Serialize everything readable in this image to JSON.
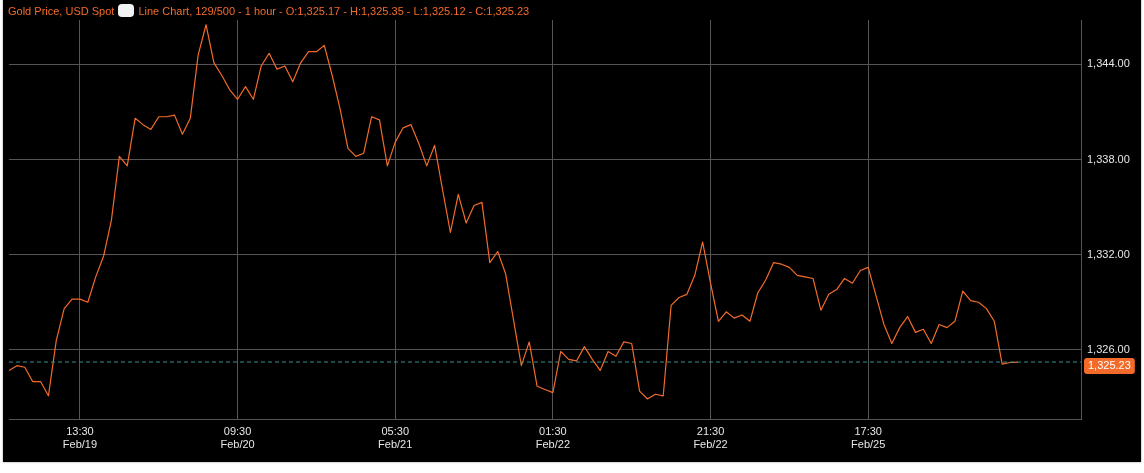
{
  "chart_data": {
    "type": "line",
    "title": "Gold Price, USD Spot",
    "subtitle": "Line Chart, 129/500 - 1 hour - O:1,325.17 - H:1,325.35 - L:1,325.12 - C:1,325.23",
    "categories": [
      null,
      null,
      null,
      null,
      null,
      null,
      null,
      null,
      null,
      "13:30\nFeb/19",
      null,
      null,
      null,
      null,
      null,
      null,
      null,
      null,
      null,
      null,
      null,
      null,
      null,
      null,
      null,
      null,
      null,
      null,
      null,
      "09:30\nFeb/20",
      null,
      null,
      null,
      null,
      null,
      null,
      null,
      null,
      null,
      null,
      null,
      null,
      null,
      null,
      null,
      null,
      null,
      null,
      null,
      "05:30\nFeb/21",
      null,
      null,
      null,
      null,
      null,
      null,
      null,
      null,
      null,
      null,
      null,
      null,
      null,
      null,
      null,
      null,
      null,
      null,
      null,
      "01:30\nFeb/22",
      null,
      null,
      null,
      null,
      null,
      null,
      null,
      null,
      null,
      null,
      null,
      null,
      null,
      null,
      null,
      null,
      null,
      null,
      null,
      "21:30\nFeb/22",
      null,
      null,
      null,
      null,
      null,
      null,
      null,
      null,
      null,
      null,
      null,
      null,
      null,
      null,
      null,
      null,
      null,
      null,
      null,
      "17:30\nFeb/25",
      null,
      null,
      null,
      null,
      null,
      null,
      null,
      null,
      null,
      null,
      null,
      null,
      null,
      null,
      null,
      null,
      null,
      null,
      null,
      null,
      null,
      null,
      null,
      null,
      null,
      null,
      null
    ],
    "series": [
      {
        "color": "#f26b2a",
        "values": [
          1324.7,
          1325.0,
          1324.9,
          1324.0,
          1324.0,
          1323.1,
          1326.6,
          1328.6,
          1329.2,
          1329.2,
          1329.0,
          1330.6,
          1331.9,
          1334.2,
          1338.2,
          1337.6,
          1340.6,
          1340.2,
          1339.9,
          1340.7,
          1340.7,
          1340.8,
          1339.6,
          1340.6,
          1344.6,
          1346.5,
          1344.1,
          1343.3,
          1342.4,
          1341.8,
          1342.6,
          1341.8,
          1343.9,
          1344.7,
          1343.7,
          1343.9,
          1342.9,
          1344.1,
          1344.8,
          1344.8,
          1345.2,
          1343.3,
          1341.2,
          1338.7,
          1338.2,
          1338.4,
          1340.7,
          1340.5,
          1337.6,
          1339.1,
          1340.0,
          1340.2,
          1339.0,
          1337.6,
          1338.9,
          1336.1,
          1333.4,
          1335.8,
          1334.0,
          1335.1,
          1335.3,
          1331.5,
          1332.2,
          1330.8,
          1327.9,
          1325.0,
          1326.5,
          1323.7,
          1323.5,
          1323.3,
          1325.9,
          1325.4,
          1325.3,
          1326.2,
          1325.4,
          1324.7,
          1325.9,
          1325.6,
          1326.5,
          1326.4,
          1323.4,
          1322.9,
          1323.2,
          1323.1,
          1328.8,
          1329.3,
          1329.5,
          1330.7,
          1332.8,
          1330.2,
          1327.8,
          1328.4,
          1328.0,
          1328.2,
          1327.8,
          1329.6,
          1330.4,
          1331.5,
          1331.4,
          1331.2,
          1330.7,
          1330.6,
          1330.5,
          1328.5,
          1329.5,
          1329.8,
          1330.5,
          1330.2,
          1331.0,
          1331.2,
          1329.4,
          1327.6,
          1326.4,
          1327.4,
          1328.1,
          1327.1,
          1327.3,
          1326.4,
          1327.6,
          1327.4,
          1327.8,
          1329.7,
          1329.1,
          1329.0,
          1328.6,
          1327.8,
          1325.1,
          1325.2,
          1325.23,
          null,
          null,
          null,
          null,
          null,
          null,
          null,
          null
        ]
      }
    ],
    "ylim": [
      1321.6,
      1346.8
    ],
    "yticks": [
      {
        "value": 1326,
        "label": "1,326.00"
      },
      {
        "value": 1332,
        "label": "1,332.00"
      },
      {
        "value": 1338,
        "label": "1,338.00"
      },
      {
        "value": 1344,
        "label": "1,344.00"
      }
    ],
    "grid": true,
    "line_style": "solid",
    "ref_lines": [
      {
        "axis": "y",
        "value": 1325.23,
        "label": "1,325.23",
        "color": "#3a8f8f",
        "line_style": "dashed"
      }
    ]
  }
}
